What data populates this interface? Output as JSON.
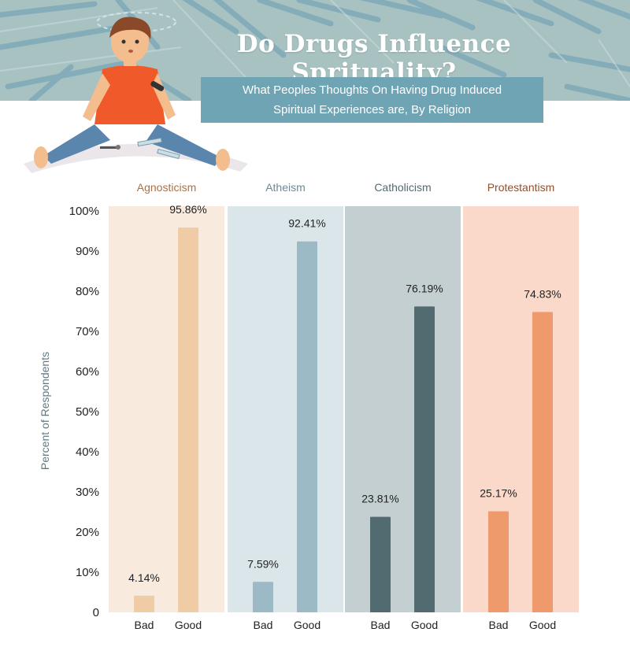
{
  "header": {
    "title": "Do Drugs Influence Sprituality?",
    "subtitle_line1": "What Peoples Thoughts On Having Drug Induced",
    "subtitle_line2": "Spiritual Experiences are, By Religion"
  },
  "colors": {
    "header_bg": "#9fbcbd",
    "header_shard": "#6f9fb3",
    "subtitle_bg": "#6fa4b4"
  },
  "icons": [
    "person-illustration-icon",
    "syringe-icon",
    "pipe-icon"
  ],
  "chart_data": {
    "type": "bar",
    "ylabel": "Percent of Respondents",
    "ylim": [
      0,
      100
    ],
    "y_ticks": [
      "0",
      "10%",
      "20%",
      "30%",
      "40%",
      "50%",
      "60%",
      "70%",
      "80%",
      "90%",
      "100%"
    ],
    "categories": [
      "Bad",
      "Good"
    ],
    "groups": [
      {
        "name": "Agnosticism",
        "values": [
          4.14,
          95.86
        ],
        "labels": [
          "4.14%",
          "95.86%"
        ],
        "bar_color": "#efcba6",
        "panel_color": "#f8ebde",
        "title_color": "#a8734a"
      },
      {
        "name": "Atheism",
        "values": [
          7.59,
          92.41
        ],
        "labels": [
          "7.59%",
          "92.41%"
        ],
        "bar_color": "#9bbac6",
        "panel_color": "#dbe6ea",
        "title_color": "#6c8a96"
      },
      {
        "name": "Catholicism",
        "values": [
          23.81,
          76.19
        ],
        "labels": [
          "23.81%",
          "76.19%"
        ],
        "bar_color": "#526b71",
        "panel_color": "#c4cfd1",
        "title_color": "#526b71"
      },
      {
        "name": "Protestantism",
        "values": [
          25.17,
          74.83
        ],
        "labels": [
          "25.17%",
          "74.83%"
        ],
        "bar_color": "#ef9a6c",
        "panel_color": "#fad9cb",
        "title_color": "#8d5032"
      }
    ],
    "grid": false,
    "legend": "none"
  }
}
